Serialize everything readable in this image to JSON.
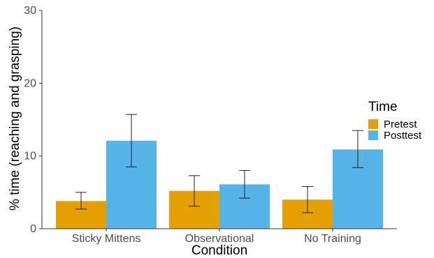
{
  "chart_data": {
    "type": "bar",
    "title": "",
    "xlabel": "Condition",
    "ylabel": "% time (reaching and grasping)",
    "ylim": [
      0,
      30
    ],
    "yticks": [
      0,
      10,
      20,
      30
    ],
    "categories": [
      "Sticky Mittens",
      "Observational",
      "No Training"
    ],
    "legend": {
      "title": "Time",
      "placement": "right"
    },
    "grid": false,
    "series": [
      {
        "name": "Pretest",
        "color": "#E69F00",
        "values": [
          3.8,
          5.2,
          4.0
        ],
        "err_low": [
          2.7,
          3.1,
          2.2
        ],
        "err_high": [
          5.0,
          7.3,
          5.8
        ]
      },
      {
        "name": "Posttest",
        "color": "#56B4E9",
        "values": [
          12.1,
          6.1,
          10.9
        ],
        "err_low": [
          8.5,
          4.2,
          8.4
        ],
        "err_high": [
          15.7,
          8.0,
          13.5
        ]
      }
    ]
  }
}
